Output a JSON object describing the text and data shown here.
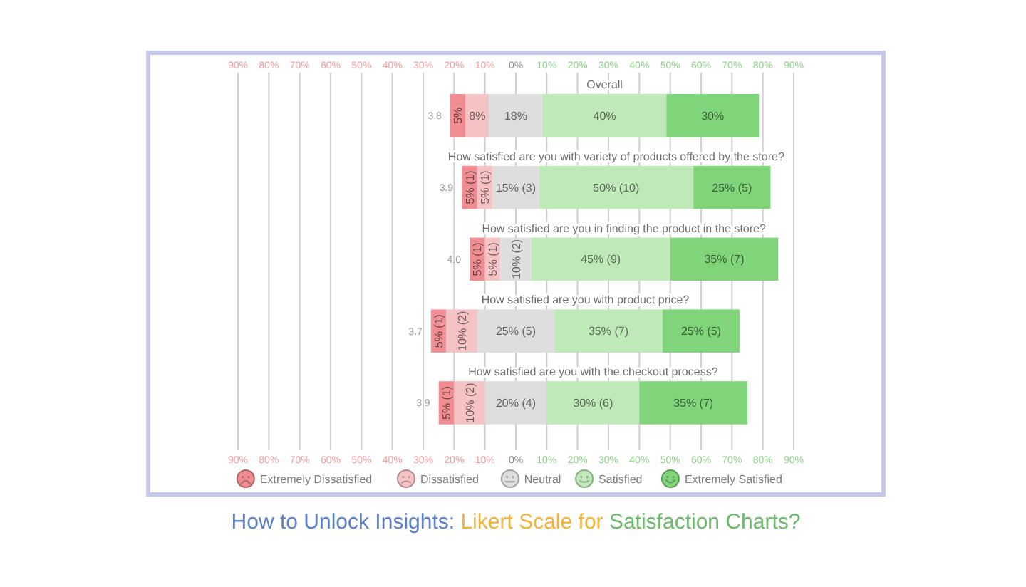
{
  "chart_data": {
    "type": "bar",
    "orientation": "horizontal",
    "title": "How to Unlock Insights: Likert Scale for Satisfaction Charts?",
    "categories": [
      "Overall",
      "How satisfied are you with variety of products offered by the store?",
      "How satisfied are you in finding the product in the store?",
      "How satisfied are you with product price?",
      "How satisfied are you with the checkout process?"
    ],
    "series": [
      {
        "name": "Extremely Dissatisfied",
        "color": "#ef8d92",
        "values": [
          5,
          5,
          5,
          5,
          5
        ],
        "base": [
          -21.25,
          -17.5,
          -15,
          -27.5,
          -25
        ],
        "value_labels": [
          "5%",
          "5% (1)",
          "5% (1)",
          "5% (1)",
          "5% (1)"
        ]
      },
      {
        "name": "Dissatisfied",
        "color": "#f6c3c5",
        "values": [
          7.5,
          5,
          5,
          10,
          10
        ],
        "base": [
          -16.25,
          -12.5,
          -10,
          -22.5,
          -20
        ],
        "value_labels": [
          "8%",
          "5% (1)",
          "5% (1)",
          "10% (2)",
          "10% (2)"
        ]
      },
      {
        "name": "Neutral",
        "color": "#dedede",
        "values": [
          17.5,
          15,
          10,
          25,
          20
        ],
        "base": [
          -8.75,
          -7.5,
          -5,
          -12.5,
          -10
        ],
        "value_labels": [
          "18%",
          "15% (3)",
          "10% (2)",
          "25% (5)",
          "20% (4)"
        ]
      },
      {
        "name": "Satisfied",
        "color": "#bfe9b8",
        "values": [
          40,
          50,
          45,
          35,
          30
        ],
        "base": [
          8.75,
          7.5,
          5,
          12.5,
          10
        ],
        "value_labels": [
          "40%",
          "50% (10)",
          "45% (9)",
          "35% (7)",
          "30% (6)"
        ]
      },
      {
        "name": "Extremely Satisfied",
        "color": "#80d57b",
        "values": [
          30,
          25,
          35,
          25,
          35
        ],
        "base": [
          48.75,
          57.5,
          50,
          47.5,
          40
        ],
        "value_labels": [
          "30%",
          "25% (5)",
          "35% (7)",
          "25% (5)",
          "35% (7)"
        ]
      }
    ],
    "xlim": [
      -90,
      90
    ],
    "xticks": [
      {
        "value": -90,
        "label": "90%"
      },
      {
        "value": -80,
        "label": "80%"
      },
      {
        "value": -70,
        "label": "70%"
      },
      {
        "value": -60,
        "label": "60%"
      },
      {
        "value": -50,
        "label": "50%"
      },
      {
        "value": -40,
        "label": "40%"
      },
      {
        "value": -30,
        "label": "30%"
      },
      {
        "value": -20,
        "label": "20%"
      },
      {
        "value": -10,
        "label": "10%"
      },
      {
        "value": 0,
        "label": "0%"
      },
      {
        "value": 10,
        "label": "10%"
      },
      {
        "value": 20,
        "label": "20%"
      },
      {
        "value": 30,
        "label": "30%"
      },
      {
        "value": 40,
        "label": "40%"
      },
      {
        "value": 50,
        "label": "50%"
      },
      {
        "value": 60,
        "label": "60%"
      },
      {
        "value": 70,
        "label": "70%"
      },
      {
        "value": 80,
        "label": "80%"
      },
      {
        "value": 90,
        "label": "90%"
      }
    ],
    "x2lim": [
      -90,
      90
    ],
    "x2ticks": [
      {
        "value": -90,
        "label": "90%"
      },
      {
        "value": -80,
        "label": "80%"
      },
      {
        "value": -70,
        "label": "70%"
      },
      {
        "value": -60,
        "label": "60%"
      },
      {
        "value": -50,
        "label": "50%"
      },
      {
        "value": -40,
        "label": "40%"
      },
      {
        "value": -30,
        "label": "30%"
      },
      {
        "value": -20,
        "label": "20%"
      },
      {
        "value": -10,
        "label": "10%"
      },
      {
        "value": 0,
        "label": "0%"
      },
      {
        "value": 10,
        "label": "10%"
      },
      {
        "value": 20,
        "label": "20%"
      },
      {
        "value": 30,
        "label": "30%"
      },
      {
        "value": 40,
        "label": "40%"
      },
      {
        "value": 50,
        "label": "50%"
      },
      {
        "value": 60,
        "label": "60%"
      },
      {
        "value": 70,
        "label": "70%"
      },
      {
        "value": 80,
        "label": "80%"
      },
      {
        "value": 90,
        "label": "90%"
      }
    ],
    "grid": "x",
    "legend": "bottom",
    "annotations": [
      "3.8",
      "3.9",
      "4.0",
      "3.7",
      "3.9"
    ]
  }
}
